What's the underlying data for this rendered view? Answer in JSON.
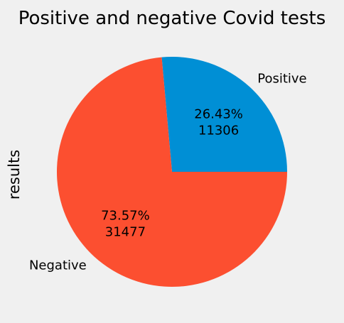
{
  "chart_data": {
    "type": "pie",
    "title": "Positive and negative Covid tests",
    "ylabel": "results",
    "slices": [
      {
        "label": "Positive",
        "value": 11306,
        "percent": "26.43%",
        "color": "#008fd5"
      },
      {
        "label": "Negative",
        "value": 31477,
        "percent": "73.57%",
        "color": "#fc4f30"
      }
    ],
    "background": "#f0f0f0"
  }
}
